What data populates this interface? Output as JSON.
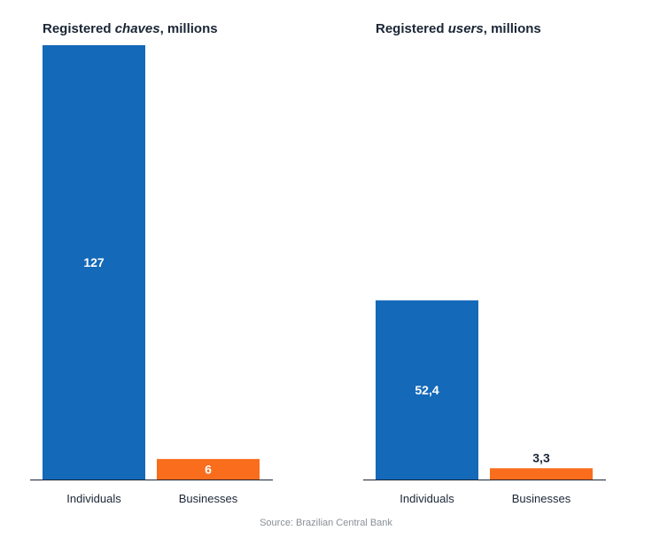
{
  "chart_data": [
    {
      "type": "bar",
      "title_parts": [
        "Registered ",
        "chaves",
        ", millions"
      ],
      "categories": [
        "Individuals",
        "Businesses"
      ],
      "values": [
        127,
        6
      ],
      "value_labels": [
        "127",
        "6"
      ],
      "colors": [
        "#1469b8",
        "#f96d1c"
      ],
      "ylim": [
        0,
        127
      ]
    },
    {
      "type": "bar",
      "title_parts": [
        "Registered ",
        "users",
        ", millions"
      ],
      "categories": [
        "Individuals",
        "Businesses"
      ],
      "values": [
        52.4,
        3.3
      ],
      "value_labels": [
        "52,4",
        "3,3"
      ],
      "colors": [
        "#1469b8",
        "#f96d1c"
      ],
      "ylim": [
        0,
        127
      ]
    }
  ],
  "source": "Source: Brazilian Central Bank"
}
